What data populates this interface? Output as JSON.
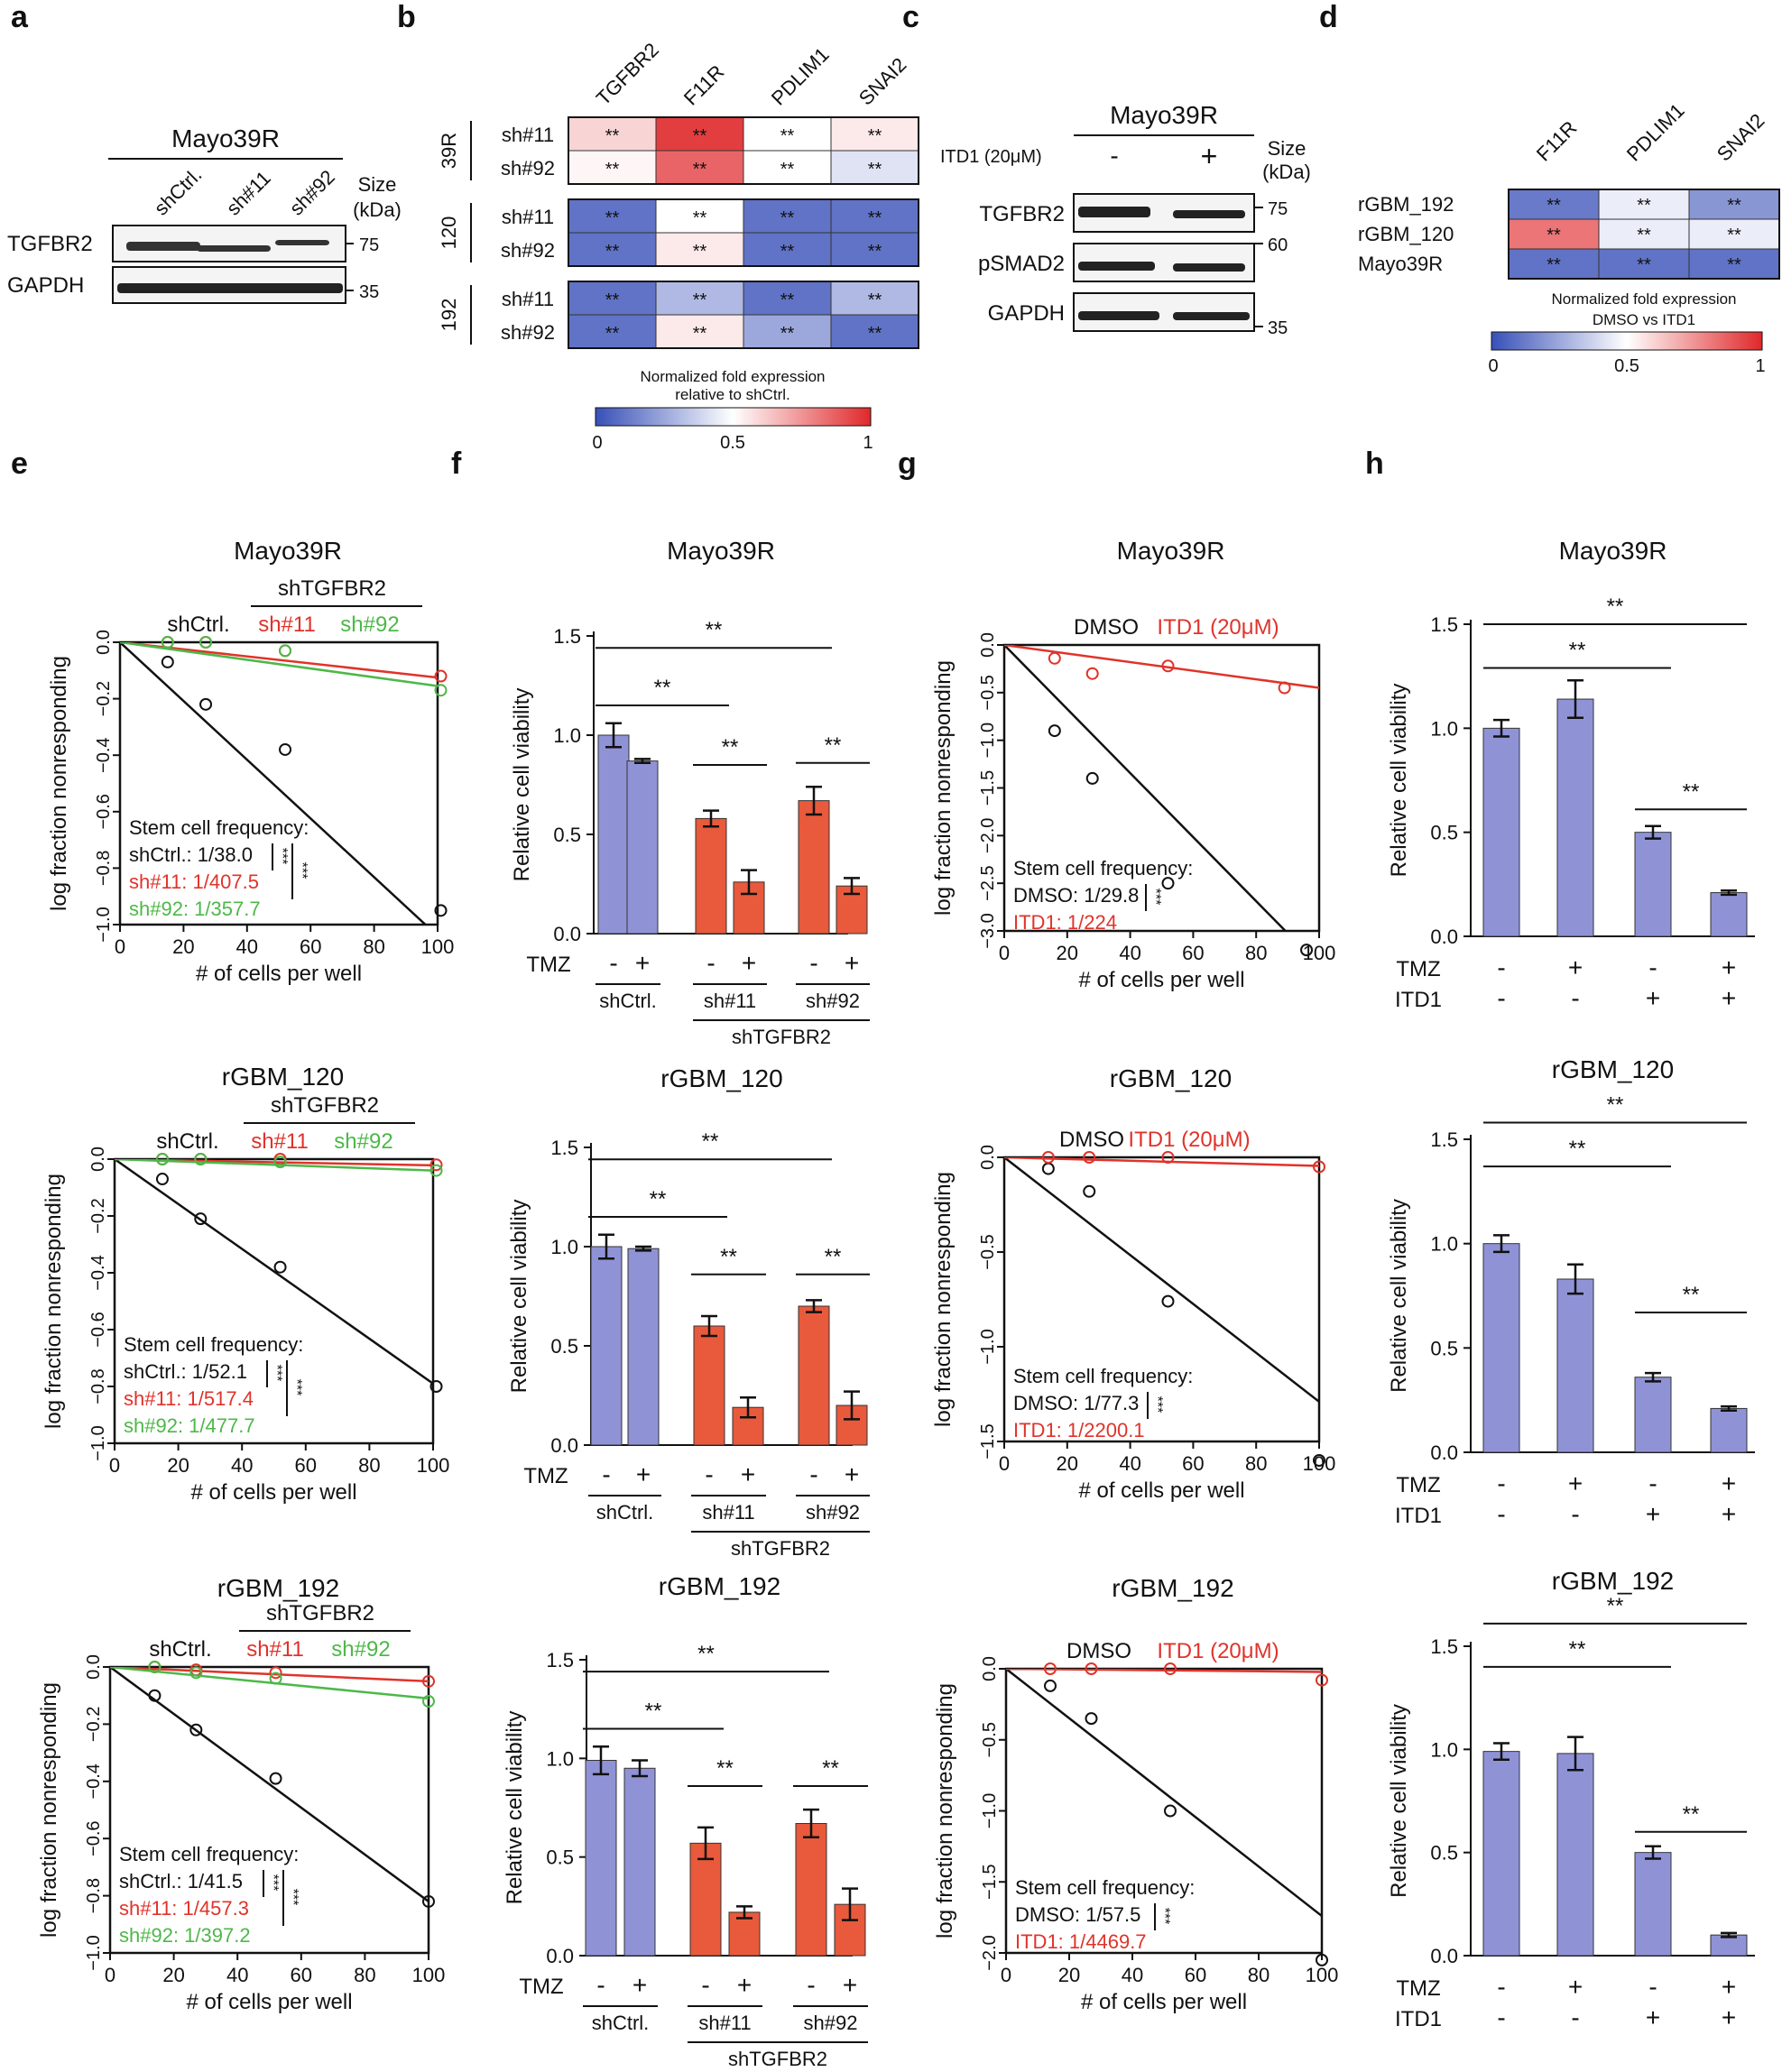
{
  "panels": {
    "a": {
      "letter": "a",
      "title": "Mayo39R",
      "lanes": [
        "shCtrl.",
        "sh#11",
        "sh#92"
      ],
      "rows": [
        "TGFBR2",
        "GAPDH"
      ],
      "size_label": "Size\n(kDa)",
      "markers": [
        "75",
        "35"
      ]
    },
    "b": {
      "letter": "b",
      "cols": [
        "TGFBR2",
        "F11R",
        "PDLIM1",
        "SNAI2"
      ],
      "groups": [
        "39R",
        "120",
        "192"
      ],
      "rows": [
        "sh#11",
        "sh#92"
      ],
      "values": [
        [
          [
            0.6,
            0.95,
            0.5,
            0.55
          ],
          [
            0.52,
            0.86,
            0.5,
            0.42
          ]
        ],
        [
          [
            0.1,
            0.5,
            0.1,
            0.1
          ],
          [
            0.1,
            0.55,
            0.1,
            0.1
          ]
        ],
        [
          [
            0.1,
            0.3,
            0.1,
            0.3
          ],
          [
            0.1,
            0.55,
            0.25,
            0.1
          ]
        ]
      ],
      "star": "**",
      "legend": "Normalized fold expression\nrelative to shCtrl.",
      "ticks": [
        "0",
        "0.5",
        "1"
      ]
    },
    "c": {
      "letter": "c",
      "title": "Mayo39R",
      "treatment": "ITD1 (20μM)",
      "lanes": [
        "-",
        "+"
      ],
      "rows": [
        "TGFBR2",
        "pSMAD2",
        "GAPDH"
      ],
      "size_label": "Size\n(kDa)",
      "markers": [
        "75",
        "60",
        "35"
      ]
    },
    "d": {
      "letter": "d",
      "cols": [
        "F11R",
        "PDLIM1",
        "SNAI2"
      ],
      "rows": [
        "rGBM_192",
        "rGBM_120",
        "Mayo39R"
      ],
      "values": [
        [
          0.12,
          0.45,
          0.2
        ],
        [
          0.82,
          0.45,
          0.45
        ],
        [
          0.1,
          0.1,
          0.1
        ]
      ],
      "star": "**",
      "legend": "Normalized fold expression\nDMSO vs ITD1",
      "ticks": [
        "0",
        "0.5",
        "1"
      ]
    },
    "e": {
      "letter": "e"
    },
    "f": {
      "letter": "f"
    },
    "g": {
      "letter": "g"
    },
    "h": {
      "letter": "h"
    }
  },
  "colors": {
    "black": "#111111",
    "red": "#e0332a",
    "green": "#4db848",
    "purple": "#8f93d6",
    "orange": "#e85a3b",
    "heat_low": "#3850b8",
    "heat_mid": "#ffffff",
    "heat_high": "#e0282a"
  },
  "chart_data": [
    {
      "panel": "e",
      "type": "scatter",
      "title": "Mayo39R",
      "group_label": "shTGFBR2",
      "xlabel": "# of cells per well",
      "ylabel": "log fraction nonresponding",
      "xlim": [
        0,
        100
      ],
      "ylim": [
        -1.0,
        0.0
      ],
      "xticks": [
        "0",
        "20",
        "40",
        "60",
        "80",
        "100"
      ],
      "yticks": [
        "0.0",
        "−0.2",
        "−0.4",
        "−0.6",
        "−0.8",
        "−1.0"
      ],
      "series": [
        {
          "name": "shCtrl.",
          "color": "black",
          "x": [
            15,
            27,
            52,
            101
          ],
          "y": [
            -0.07,
            -0.22,
            -0.38,
            -0.95
          ],
          "fit": [
            0.0,
            -0.0104
          ]
        },
        {
          "name": "sh#11",
          "color": "red",
          "x": [
            15,
            27,
            52,
            101
          ],
          "y": [
            0.0,
            0.0,
            -0.03,
            -0.12
          ],
          "fit": [
            0.0,
            -0.00125
          ]
        },
        {
          "name": "sh#92",
          "color": "green",
          "x": [
            15,
            27,
            52,
            101
          ],
          "y": [
            0.0,
            0.0,
            -0.03,
            -0.17
          ],
          "fit": [
            0.0,
            -0.00155
          ]
        }
      ],
      "freq_title": "Stem cell frequency:",
      "freq": [
        "shCtrl.: 1/38.0",
        "sh#11: 1/407.5",
        "sh#92: 1/357.7"
      ],
      "sig": "***"
    },
    {
      "panel": "e",
      "type": "scatter",
      "title": "rGBM_120",
      "group_label": "shTGFBR2",
      "xlabel": "# of cells per well",
      "ylabel": "log fraction nonresponding",
      "xlim": [
        0,
        100
      ],
      "ylim": [
        -1.0,
        0.0
      ],
      "xticks": [
        "0",
        "20",
        "40",
        "60",
        "80",
        "100"
      ],
      "yticks": [
        "0.0",
        "−0.2",
        "−0.4",
        "−0.6",
        "−0.8",
        "−1.0"
      ],
      "series": [
        {
          "name": "shCtrl.",
          "color": "black",
          "x": [
            15,
            27,
            52,
            101
          ],
          "y": [
            -0.07,
            -0.21,
            -0.38,
            -0.8
          ],
          "fit": [
            0.0,
            -0.0079
          ]
        },
        {
          "name": "sh#11",
          "color": "red",
          "x": [
            15,
            27,
            52,
            101
          ],
          "y": [
            0.0,
            0.0,
            0.0,
            -0.02
          ],
          "fit": [
            0.0,
            -0.00022
          ]
        },
        {
          "name": "sh#92",
          "color": "green",
          "x": [
            15,
            27,
            52,
            101
          ],
          "y": [
            0.0,
            0.0,
            -0.01,
            -0.04
          ],
          "fit": [
            0.0,
            -0.0004
          ]
        }
      ],
      "freq_title": "Stem cell frequency:",
      "freq": [
        "shCtrl.: 1/52.1",
        "sh#11: 1/517.4",
        "sh#92: 1/477.7"
      ],
      "sig": "***"
    },
    {
      "panel": "e",
      "type": "scatter",
      "title": "rGBM_192",
      "group_label": "shTGFBR2",
      "xlabel": "# of cells per well",
      "ylabel": "log fraction nonresponding",
      "xlim": [
        0,
        100
      ],
      "ylim": [
        -1.0,
        0.0
      ],
      "xticks": [
        "0",
        "20",
        "40",
        "60",
        "80",
        "100"
      ],
      "yticks": [
        "0.0",
        "−0.2",
        "−0.4",
        "−0.6",
        "−0.8",
        "−1.0"
      ],
      "series": [
        {
          "name": "shCtrl.",
          "color": "black",
          "x": [
            14,
            27,
            52,
            100
          ],
          "y": [
            -0.1,
            -0.22,
            -0.39,
            -0.82
          ],
          "fit": [
            0.0,
            -0.0082
          ]
        },
        {
          "name": "sh#11",
          "color": "red",
          "x": [
            14,
            27,
            52,
            100
          ],
          "y": [
            0.0,
            -0.01,
            -0.02,
            -0.05
          ],
          "fit": [
            0.0,
            -0.0005
          ]
        },
        {
          "name": "sh#92",
          "color": "green",
          "x": [
            14,
            27,
            52,
            100
          ],
          "y": [
            0.0,
            -0.02,
            -0.04,
            -0.12
          ],
          "fit": [
            0.0,
            -0.0011
          ]
        }
      ],
      "freq_title": "Stem cell frequency:",
      "freq": [
        "shCtrl.: 1/41.5",
        "sh#11: 1/457.3",
        "sh#92: 1/397.2"
      ],
      "sig": "***"
    },
    {
      "panel": "f",
      "type": "bar",
      "title": "Mayo39R",
      "ylabel": "Relative cell viability",
      "ylim": [
        0,
        1.5
      ],
      "yticks": [
        "0.0",
        "0.5",
        "1.0",
        "1.5"
      ],
      "row_label": "TMZ",
      "tmz": [
        "-",
        "+",
        "-",
        "+",
        "-",
        "+"
      ],
      "groups": [
        "shCtrl.",
        "sh#11",
        "sh#92"
      ],
      "super": "shTGFBR2",
      "values": [
        1.0,
        0.87,
        0.58,
        0.26,
        0.67,
        0.24
      ],
      "errors": [
        0.06,
        0.01,
        0.04,
        0.06,
        0.07,
        0.04
      ],
      "sig": "**"
    },
    {
      "panel": "f",
      "type": "bar",
      "title": "rGBM_120",
      "ylabel": "Relative cell viability",
      "ylim": [
        0,
        1.5
      ],
      "yticks": [
        "0.0",
        "0.5",
        "1.0",
        "1.5"
      ],
      "row_label": "TMZ",
      "tmz": [
        "-",
        "+",
        "-",
        "+",
        "-",
        "+"
      ],
      "groups": [
        "shCtrl.",
        "sh#11",
        "sh#92"
      ],
      "super": "shTGFBR2",
      "values": [
        1.0,
        0.99,
        0.6,
        0.19,
        0.7,
        0.2
      ],
      "errors": [
        0.06,
        0.01,
        0.05,
        0.05,
        0.03,
        0.07
      ],
      "sig": "**"
    },
    {
      "panel": "f",
      "type": "bar",
      "title": "rGBM_192",
      "ylabel": "Relative cell viability",
      "ylim": [
        0,
        1.5
      ],
      "yticks": [
        "0.0",
        "0.5",
        "1.0",
        "1.5"
      ],
      "row_label": "TMZ",
      "tmz": [
        "-",
        "+",
        "-",
        "+",
        "-",
        "+"
      ],
      "groups": [
        "shCtrl.",
        "sh#11",
        "sh#92"
      ],
      "super": "shTGFBR2",
      "values": [
        0.99,
        0.95,
        0.57,
        0.22,
        0.67,
        0.26
      ],
      "errors": [
        0.07,
        0.04,
        0.08,
        0.03,
        0.07,
        0.08
      ],
      "sig": "**"
    },
    {
      "panel": "g",
      "type": "scatter",
      "title": "Mayo39R",
      "xlabel": "# of cells per well",
      "ylabel": "log fraction nonresponding",
      "xlim": [
        0,
        100
      ],
      "ylim": [
        -3.0,
        0.0
      ],
      "xticks": [
        "0",
        "20",
        "40",
        "60",
        "80",
        "100"
      ],
      "yticks": [
        "0.0",
        "−0.5",
        "−1.0",
        "−1.5",
        "−2.0",
        "−2.5",
        "−3.0"
      ],
      "series": [
        {
          "name": "DMSO",
          "color": "black",
          "x": [
            16,
            28,
            52,
            96
          ],
          "y": [
            -0.9,
            -1.4,
            -2.5,
            -3.2
          ],
          "fit": [
            0.0,
            -0.0336
          ]
        },
        {
          "name": "ITD1 (20μM)",
          "color": "red",
          "x": [
            16,
            28,
            52,
            89
          ],
          "y": [
            -0.14,
            -0.3,
            -0.22,
            -0.45
          ],
          "fit": [
            0.0,
            -0.0045
          ]
        }
      ],
      "freq_title": "Stem cell frequency:",
      "freq": [
        "DMSO: 1/29.8",
        "ITD1: 1/224"
      ],
      "sig": "***"
    },
    {
      "panel": "g",
      "type": "scatter",
      "title": "rGBM_120",
      "xlabel": "# of cells per well",
      "ylabel": "log fraction nonresponding",
      "xlim": [
        0,
        100
      ],
      "ylim": [
        -1.5,
        0.0
      ],
      "xticks": [
        "0",
        "20",
        "40",
        "60",
        "80",
        "100"
      ],
      "yticks": [
        "0.0",
        "−0.5",
        "−1.0",
        "−1.5"
      ],
      "series": [
        {
          "name": "DMSO",
          "color": "black",
          "x": [
            14,
            27,
            52,
            100
          ],
          "y": [
            -0.06,
            -0.18,
            -0.76,
            -1.6
          ],
          "fit": [
            0.0,
            -0.0129
          ]
        },
        {
          "name": "ITD1 (20μM)",
          "color": "red",
          "x": [
            14,
            27,
            52,
            100
          ],
          "y": [
            0.0,
            0.0,
            0.0,
            -0.05
          ],
          "fit": [
            0.0,
            -0.00045
          ]
        }
      ],
      "freq_title": "Stem cell frequency:",
      "freq": [
        "DMSO: 1/77.3",
        "ITD1: 1/2200.1"
      ],
      "sig": "***"
    },
    {
      "panel": "g",
      "type": "scatter",
      "title": "rGBM_192",
      "xlabel": "# of cells per well",
      "ylabel": "log fraction nonresponding",
      "xlim": [
        0,
        100
      ],
      "ylim": [
        -2.0,
        0.0
      ],
      "xticks": [
        "0",
        "20",
        "40",
        "60",
        "80",
        "100"
      ],
      "yticks": [
        "0.0",
        "−0.5",
        "−1.0",
        "−1.5",
        "−2.0"
      ],
      "series": [
        {
          "name": "DMSO",
          "color": "black",
          "x": [
            14,
            27,
            52,
            100
          ],
          "y": [
            -0.12,
            -0.35,
            -1.0,
            -2.05
          ],
          "fit": [
            0.0,
            -0.0174
          ]
        },
        {
          "name": "ITD1 (20μM)",
          "color": "red",
          "x": [
            14,
            27,
            52,
            100
          ],
          "y": [
            0.0,
            0.0,
            0.0,
            -0.08
          ],
          "fit": [
            0.0,
            -0.00022
          ]
        }
      ],
      "freq_title": "Stem cell frequency:",
      "freq": [
        "DMSO: 1/57.5",
        "ITD1: 1/4469.7"
      ],
      "sig": "***"
    },
    {
      "panel": "h",
      "type": "bar",
      "title": "Mayo39R",
      "ylabel": "Relative cell viability",
      "ylim": [
        0,
        1.5
      ],
      "yticks": [
        "0.0",
        "0.5",
        "1.0",
        "1.5"
      ],
      "row_labels": [
        "TMZ",
        "ITD1"
      ],
      "tmz": [
        "-",
        "+",
        "-",
        "+"
      ],
      "itd1": [
        "-",
        "-",
        "+",
        "+"
      ],
      "values": [
        1.0,
        1.14,
        0.5,
        0.21
      ],
      "errors": [
        0.04,
        0.09,
        0.03,
        0.01
      ],
      "sig": "**"
    },
    {
      "panel": "h",
      "type": "bar",
      "title": "rGBM_120",
      "ylabel": "Relative cell viability",
      "ylim": [
        0,
        1.5
      ],
      "yticks": [
        "0.0",
        "0.5",
        "1.0",
        "1.5"
      ],
      "row_labels": [
        "TMZ",
        "ITD1"
      ],
      "tmz": [
        "-",
        "+",
        "-",
        "+"
      ],
      "itd1": [
        "-",
        "-",
        "+",
        "+"
      ],
      "values": [
        1.0,
        0.83,
        0.36,
        0.21
      ],
      "errors": [
        0.04,
        0.07,
        0.02,
        0.01
      ],
      "sig": "**"
    },
    {
      "panel": "h",
      "type": "bar",
      "title": "rGBM_192",
      "ylabel": "Relative cell viability",
      "ylim": [
        0,
        1.5
      ],
      "yticks": [
        "0.0",
        "0.5",
        "1.0",
        "1.5"
      ],
      "row_labels": [
        "TMZ",
        "ITD1"
      ],
      "tmz": [
        "-",
        "+",
        "-",
        "+"
      ],
      "itd1": [
        "-",
        "-",
        "+",
        "+"
      ],
      "values": [
        0.99,
        0.98,
        0.5,
        0.1
      ],
      "errors": [
        0.04,
        0.08,
        0.03,
        0.01
      ],
      "sig": "**"
    }
  ]
}
